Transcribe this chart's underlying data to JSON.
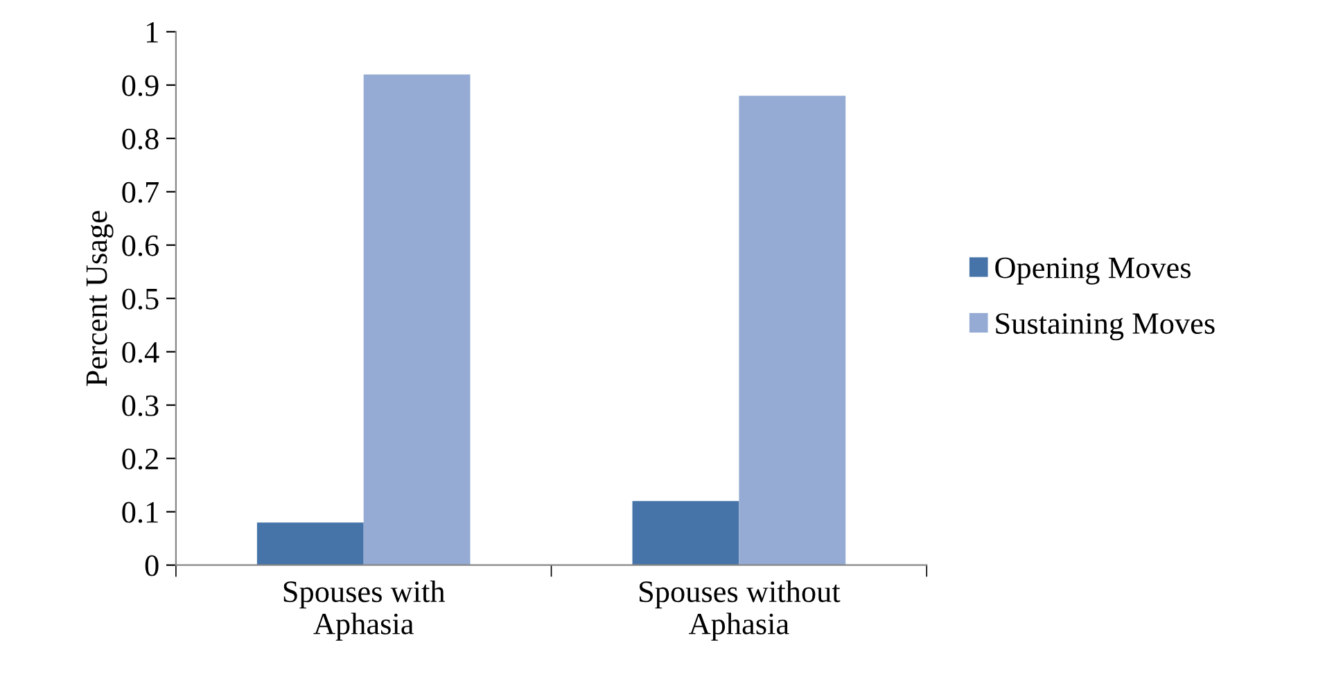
{
  "chart_data": {
    "type": "bar",
    "ylabel": "Percent Usage",
    "categories": [
      "Spouses with\nAphasia",
      "Spouses without\nAphasia"
    ],
    "series": [
      {
        "name": "Opening Moves",
        "color": "#4674a9",
        "values": [
          0.08,
          0.12
        ]
      },
      {
        "name": "Sustaining Moves",
        "color": "#95abd4",
        "values": [
          0.92,
          0.88
        ]
      }
    ],
    "ylim": [
      0,
      1
    ],
    "yticks": [
      0,
      0.1,
      0.2,
      0.3,
      0.4,
      0.5,
      0.6,
      0.7,
      0.8,
      0.9,
      1
    ],
    "grid": false,
    "legend": "right"
  }
}
